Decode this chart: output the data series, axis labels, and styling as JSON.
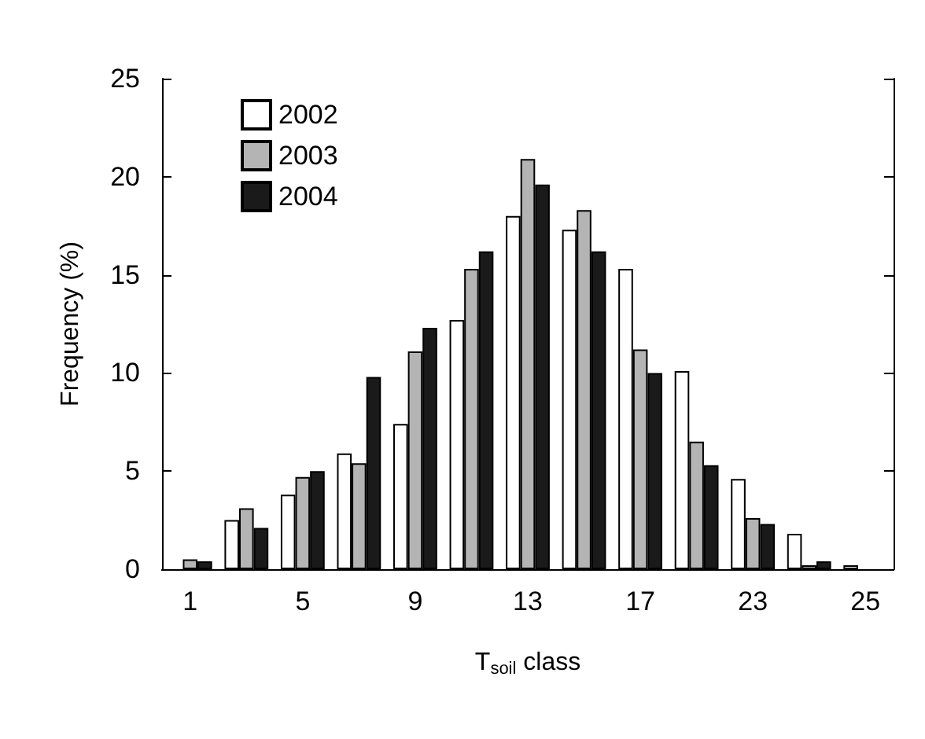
{
  "chart_data": {
    "type": "bar",
    "xlabel": "T$_{soil}$ class",
    "ylabel": "Frequency (%)",
    "categories": [
      "1",
      null,
      "5",
      null,
      "9",
      null,
      "13",
      null,
      "17",
      null,
      "23",
      null,
      "25"
    ],
    "series": [
      {
        "name": "2002",
        "color": "#ffffff",
        "values": [
          0,
          2.5,
          3.8,
          5.9,
          7.4,
          12.7,
          18.0,
          17.3,
          15.3,
          10.1,
          4.6,
          1.8,
          0.2
        ]
      },
      {
        "name": "2003",
        "color": "#b4b4b4",
        "values": [
          0.5,
          3.1,
          4.7,
          5.4,
          11.1,
          15.3,
          20.9,
          18.3,
          11.2,
          6.5,
          2.6,
          0.2,
          0
        ]
      },
      {
        "name": "2004",
        "color": "#1a1a1a",
        "values": [
          0.4,
          2.1,
          5.0,
          9.8,
          12.3,
          16.2,
          19.6,
          16.2,
          10.0,
          5.3,
          2.3,
          0.4,
          0
        ]
      }
    ],
    "ylim": [
      0,
      25
    ],
    "yticks": [
      0,
      5,
      10,
      15,
      20,
      25
    ],
    "grid": false,
    "legend": "top left"
  }
}
